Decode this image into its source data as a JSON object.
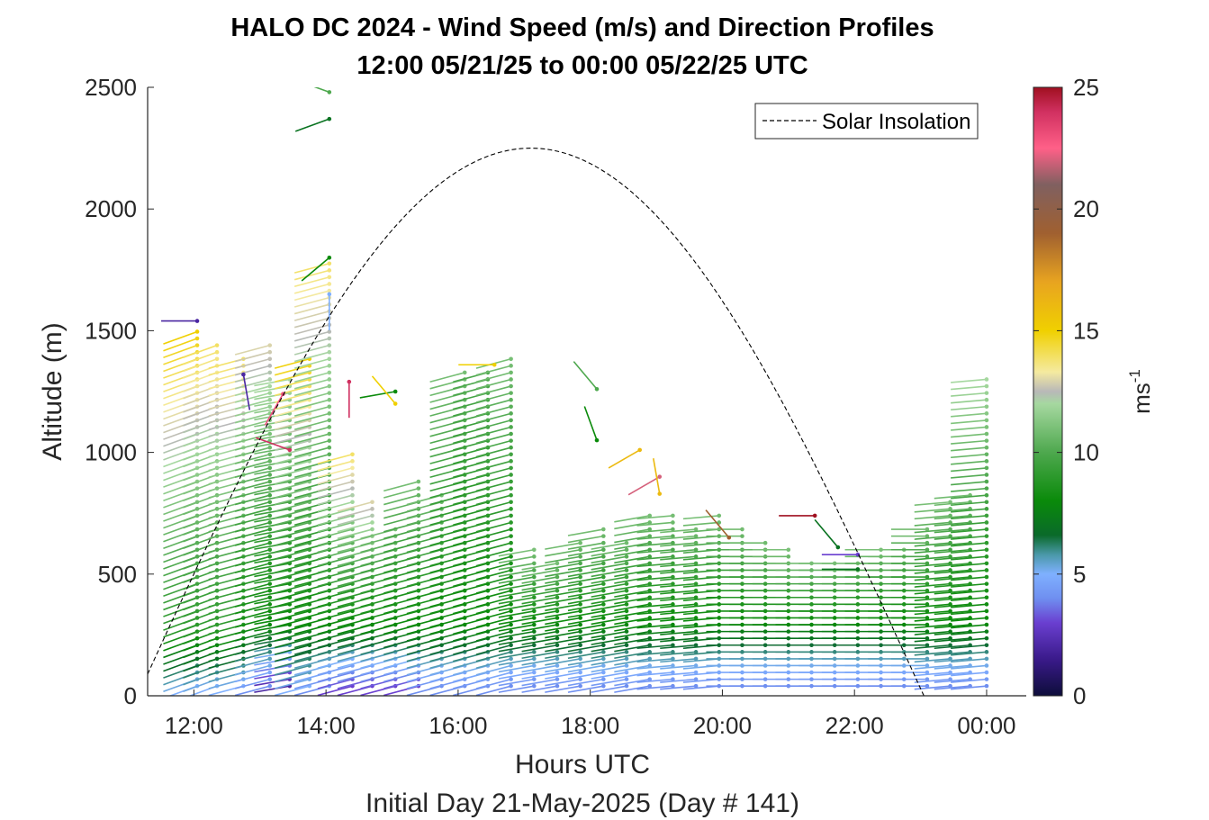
{
  "chart_data": {
    "type": "wind-barb-profile",
    "title": "HALO DC 2024 - Wind Speed (m/s) and Direction Profiles",
    "subtitle": "12:00 05/21/25 to 00:00 05/22/25  UTC",
    "xlabel": "Hours UTC",
    "footer": "Initial Day 21-May-2025 (Day # 141)",
    "ylabel": "Altitude (m)",
    "xlim": [
      11.3,
      24.6
    ],
    "ylim": [
      0,
      2500
    ],
    "x_ticks": [
      12,
      14,
      16,
      18,
      20,
      22,
      24
    ],
    "x_tick_labels": [
      "12:00",
      "14:00",
      "16:00",
      "18:00",
      "20:00",
      "22:00",
      "00:00"
    ],
    "y_ticks": [
      0,
      500,
      1000,
      1500,
      2000,
      2500
    ],
    "y_tick_labels": [
      "0",
      "500",
      "1000",
      "1500",
      "2000",
      "2500"
    ],
    "grid": false,
    "colorbar": {
      "label": "ms",
      "label_exponent": "-1",
      "range": [
        0,
        25
      ],
      "ticks": [
        0,
        5,
        10,
        15,
        20,
        25
      ],
      "tick_labels": [
        "0",
        "5",
        "10",
        "15",
        "20",
        "25"
      ],
      "colors": [
        {
          "v": 0,
          "c": "#0d0d3a"
        },
        {
          "v": 1.5,
          "c": "#3a1a8a"
        },
        {
          "v": 3,
          "c": "#6a3fd0"
        },
        {
          "v": 4,
          "c": "#6f8ff0"
        },
        {
          "v": 5,
          "c": "#7fb0ff"
        },
        {
          "v": 5.8,
          "c": "#4a98a8"
        },
        {
          "v": 6.6,
          "c": "#0a6a2a"
        },
        {
          "v": 8,
          "c": "#0a8a0a"
        },
        {
          "v": 10,
          "c": "#4ea84e"
        },
        {
          "v": 12,
          "c": "#a6d8a0"
        },
        {
          "v": 12.5,
          "c": "#b8b8b8"
        },
        {
          "v": 13.3,
          "c": "#f5eaa0"
        },
        {
          "v": 15,
          "c": "#f0d000"
        },
        {
          "v": 17,
          "c": "#e8a420"
        },
        {
          "v": 19,
          "c": "#a06030"
        },
        {
          "v": 21,
          "c": "#806060"
        },
        {
          "v": 22.5,
          "c": "#ff6088"
        },
        {
          "v": 24,
          "c": "#d03060"
        },
        {
          "v": 25,
          "c": "#a01020"
        }
      ]
    },
    "legend": {
      "entries": [
        "Solar Insolation"
      ],
      "placement": "top-right",
      "style": "dashed black line"
    },
    "solar_insolation": {
      "peak_hour": 17.1,
      "peak_altitude": 2250,
      "half_width_hours": 5.95
    },
    "series": [
      {
        "time": 12.05,
        "top": 1500,
        "base_speed": 5,
        "bl_speed": 9,
        "upper_speed": 15,
        "dir": 250
      },
      {
        "time": 12.35,
        "top": 1450,
        "base_speed": 5,
        "bl_speed": 9,
        "upper_speed": 14,
        "dir": 250
      },
      {
        "time": 12.75,
        "top": 1400,
        "base_speed": 5,
        "bl_speed": 9,
        "upper_speed": 14,
        "dir": 255
      },
      {
        "time": 13.15,
        "top": 1450,
        "base_speed": 4,
        "bl_speed": 8,
        "upper_speed": 13,
        "dir": 255
      },
      {
        "time": 13.45,
        "top": 1300,
        "base_speed": 2,
        "bl_speed": 8,
        "upper_speed": 12,
        "dir": 260
      },
      {
        "time": 13.75,
        "top": 1400,
        "base_speed": 5,
        "bl_speed": 8,
        "upper_speed": 15,
        "dir": 255
      },
      {
        "time": 14.05,
        "top": 1800,
        "base_speed": 4,
        "bl_speed": 8,
        "upper_speed": 14,
        "dir": 255
      },
      {
        "time": 14.4,
        "top": 1000,
        "base_speed": 3,
        "bl_speed": 8,
        "upper_speed": 14,
        "dir": 255
      },
      {
        "time": 14.7,
        "top": 800,
        "base_speed": 3,
        "bl_speed": 8,
        "upper_speed": 13,
        "dir": 255
      },
      {
        "time": 15.05,
        "top": 700,
        "base_speed": 3,
        "bl_speed": 8,
        "upper_speed": 11,
        "dir": 255
      },
      {
        "time": 15.4,
        "top": 900,
        "base_speed": 3,
        "bl_speed": 8,
        "upper_speed": 11,
        "dir": 255
      },
      {
        "time": 15.75,
        "top": 850,
        "base_speed": 4,
        "bl_speed": 8,
        "upper_speed": 11,
        "dir": 255
      },
      {
        "time": 16.1,
        "top": 1350,
        "base_speed": 4,
        "bl_speed": 8,
        "upper_speed": 11,
        "dir": 255
      },
      {
        "time": 16.45,
        "top": 1350,
        "base_speed": 4,
        "bl_speed": 8,
        "upper_speed": 10,
        "dir": 255
      },
      {
        "time": 16.8,
        "top": 1400,
        "base_speed": 4,
        "bl_speed": 8,
        "upper_speed": 11,
        "dir": 255
      },
      {
        "time": 17.15,
        "top": 600,
        "base_speed": 4,
        "bl_speed": 8,
        "upper_speed": 11,
        "dir": 260
      },
      {
        "time": 17.5,
        "top": 550,
        "base_speed": 4,
        "bl_speed": 8,
        "upper_speed": 11,
        "dir": 260
      },
      {
        "time": 17.85,
        "top": 650,
        "base_speed": 4,
        "bl_speed": 8,
        "upper_speed": 11,
        "dir": 260
      },
      {
        "time": 18.2,
        "top": 700,
        "base_speed": 4,
        "bl_speed": 8,
        "upper_speed": 11,
        "dir": 260
      },
      {
        "time": 18.55,
        "top": 650,
        "base_speed": 4,
        "bl_speed": 8,
        "upper_speed": 11,
        "dir": 260
      },
      {
        "time": 18.9,
        "top": 750,
        "base_speed": 4,
        "bl_speed": 8,
        "upper_speed": 11,
        "dir": 260
      },
      {
        "time": 19.25,
        "top": 750,
        "base_speed": 4,
        "bl_speed": 8,
        "upper_speed": 11,
        "dir": 265
      },
      {
        "time": 19.6,
        "top": 700,
        "base_speed": 4,
        "bl_speed": 8,
        "upper_speed": 11,
        "dir": 265
      },
      {
        "time": 19.95,
        "top": 750,
        "base_speed": 4,
        "bl_speed": 8,
        "upper_speed": 11,
        "dir": 265
      },
      {
        "time": 20.3,
        "top": 700,
        "base_speed": 4,
        "bl_speed": 8,
        "upper_speed": 11,
        "dir": 270
      },
      {
        "time": 20.65,
        "top": 650,
        "base_speed": 4,
        "bl_speed": 8,
        "upper_speed": 11,
        "dir": 270
      },
      {
        "time": 21.0,
        "top": 600,
        "base_speed": 4,
        "bl_speed": 8,
        "upper_speed": 11,
        "dir": 270
      },
      {
        "time": 21.35,
        "top": 550,
        "base_speed": 4,
        "bl_speed": 8,
        "upper_speed": 11,
        "dir": 270
      },
      {
        "time": 21.7,
        "top": 550,
        "base_speed": 4,
        "bl_speed": 8,
        "upper_speed": 11,
        "dir": 270
      },
      {
        "time": 22.05,
        "top": 550,
        "base_speed": 4,
        "bl_speed": 8,
        "upper_speed": 11,
        "dir": 270
      },
      {
        "time": 22.4,
        "top": 600,
        "base_speed": 4,
        "bl_speed": 8,
        "upper_speed": 11,
        "dir": 270
      },
      {
        "time": 22.75,
        "top": 600,
        "base_speed": 4,
        "bl_speed": 8,
        "upper_speed": 11,
        "dir": 270
      },
      {
        "time": 23.1,
        "top": 700,
        "base_speed": 4,
        "bl_speed": 8,
        "upper_speed": 11,
        "dir": 270
      },
      {
        "time": 23.45,
        "top": 800,
        "base_speed": 4,
        "bl_speed": 8,
        "upper_speed": 11,
        "dir": 265
      },
      {
        "time": 23.75,
        "top": 850,
        "base_speed": 4,
        "bl_speed": 8,
        "upper_speed": 11,
        "dir": 265
      },
      {
        "time": 24.0,
        "top": 1300,
        "base_speed": 4,
        "bl_speed": 8,
        "upper_speed": 12,
        "dir": 265
      }
    ],
    "isolated_barbs": [
      {
        "time": 12.05,
        "alt": 1540,
        "speed": 2,
        "dir": 270
      },
      {
        "time": 12.75,
        "alt": 1320,
        "speed": 2,
        "dir": 170
      },
      {
        "time": 13.35,
        "alt": 1240,
        "speed": 23,
        "dir": 210
      },
      {
        "time": 13.45,
        "alt": 1010,
        "speed": 24,
        "dir": 290
      },
      {
        "time": 14.05,
        "alt": 2480,
        "speed": 10,
        "dir": 290
      },
      {
        "time": 14.05,
        "alt": 2370,
        "speed": 7,
        "dir": 250
      },
      {
        "time": 14.05,
        "alt": 1800,
        "speed": 8,
        "dir": 230
      },
      {
        "time": 14.05,
        "alt": 1650,
        "speed": 5,
        "dir": 180
      },
      {
        "time": 14.35,
        "alt": 1290,
        "speed": 24,
        "dir": 180
      },
      {
        "time": 15.05,
        "alt": 1250,
        "speed": 8,
        "dir": 260
      },
      {
        "time": 15.05,
        "alt": 1200,
        "speed": 15,
        "dir": 320
      },
      {
        "time": 16.55,
        "alt": 1360,
        "speed": 15,
        "dir": 270
      },
      {
        "time": 18.1,
        "alt": 1260,
        "speed": 10,
        "dir": 320
      },
      {
        "time": 18.1,
        "alt": 1050,
        "speed": 8,
        "dir": 340
      },
      {
        "time": 18.75,
        "alt": 1010,
        "speed": 16,
        "dir": 240
      },
      {
        "time": 19.05,
        "alt": 900,
        "speed": 22,
        "dir": 240
      },
      {
        "time": 19.05,
        "alt": 830,
        "speed": 16,
        "dir": 350
      },
      {
        "time": 20.1,
        "alt": 650,
        "speed": 19,
        "dir": 320
      },
      {
        "time": 21.4,
        "alt": 740,
        "speed": 25,
        "dir": 270
      },
      {
        "time": 21.75,
        "alt": 610,
        "speed": 7,
        "dir": 320
      },
      {
        "time": 22.05,
        "alt": 580,
        "speed": 3,
        "dir": 270
      },
      {
        "time": 22.05,
        "alt": 520,
        "speed": 7,
        "dir": 270
      }
    ]
  }
}
